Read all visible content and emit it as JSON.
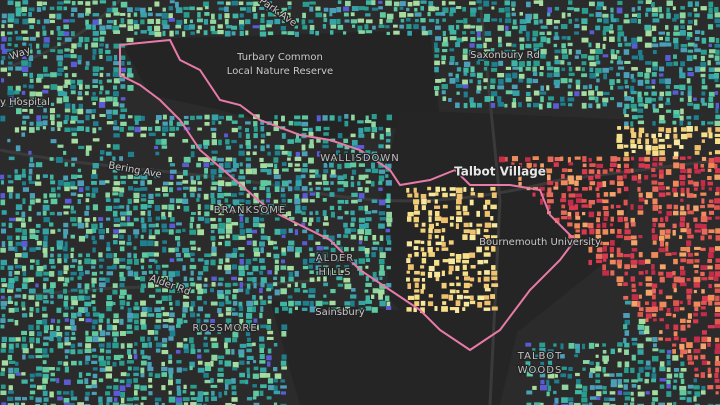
{
  "places": [
    {
      "text": "Park Ave"
    },
    {
      "text": "Way"
    },
    {
      "text": "y Hospital"
    },
    {
      "text": "Turbary Common"
    },
    {
      "text": "Local Nature Reserve"
    },
    {
      "text": "Saxonbury Rd"
    },
    {
      "text": "WALLISDOWN"
    },
    {
      "text": "Talbot Village"
    },
    {
      "text": "Bournemouth University"
    },
    {
      "text": "BRANKSOME"
    },
    {
      "text": "ALDER"
    },
    {
      "text": "HILLS"
    },
    {
      "text": "Alder Rd"
    },
    {
      "text": "Sainsbury"
    },
    {
      "text": "ROSSMORE"
    },
    {
      "text": "TALBOT"
    },
    {
      "text": "WOODS"
    },
    {
      "text": "Bering Ave"
    }
  ]
}
